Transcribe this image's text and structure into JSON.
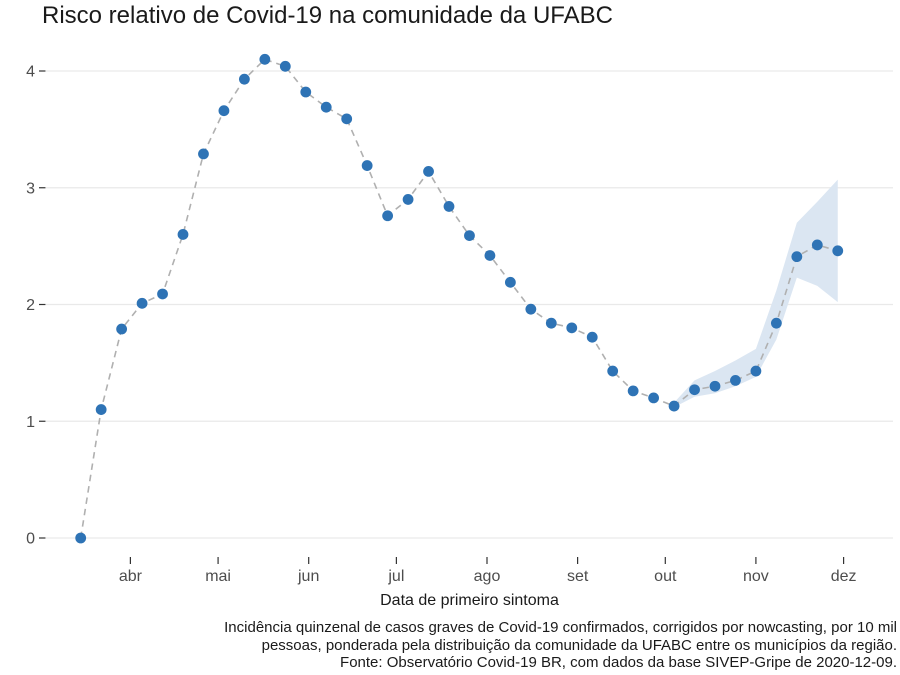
{
  "chart_data": {
    "type": "line",
    "title": "Risco relativo de Covid-19 na comunidade da UFABC",
    "xlabel": "Data de primeiro sintoma",
    "ylabel": "",
    "caption_lines": [
      "Incidência quinzenal de casos graves de Covid-19 confirmados, corrigidos por nowcasting, por 10 mil",
      "pessoas, ponderada pela distribuição da comunidade da UFABC entre os municípios da região.",
      "Fonte: Observatório Covid-19 BR, com dados da base SIVEP-Gripe de 2020-12-09."
    ],
    "grid": "horizontal-major-only",
    "legend": "none",
    "ylim": [
      0,
      4.3
    ],
    "y_ticks": [
      0,
      1,
      2,
      3,
      4
    ],
    "x_ticks": [
      {
        "label": "abr",
        "date": "2020-04-01"
      },
      {
        "label": "mai",
        "date": "2020-05-01"
      },
      {
        "label": "jun",
        "date": "2020-06-01"
      },
      {
        "label": "jul",
        "date": "2020-07-01"
      },
      {
        "label": "ago",
        "date": "2020-08-01"
      },
      {
        "label": "set",
        "date": "2020-09-01"
      },
      {
        "label": "out",
        "date": "2020-10-01"
      },
      {
        "label": "nov",
        "date": "2020-11-01"
      },
      {
        "label": "dez",
        "date": "2020-12-01"
      }
    ],
    "series": [
      {
        "name": "risco-relativo",
        "style": "points-with-dashed-line",
        "points": [
          {
            "date": "2020-03-15",
            "value": 0.0
          },
          {
            "date": "2020-03-22",
            "value": 1.1
          },
          {
            "date": "2020-03-29",
            "value": 1.79
          },
          {
            "date": "2020-04-05",
            "value": 2.01
          },
          {
            "date": "2020-04-12",
            "value": 2.09
          },
          {
            "date": "2020-04-19",
            "value": 2.6
          },
          {
            "date": "2020-04-26",
            "value": 3.29
          },
          {
            "date": "2020-05-03",
            "value": 3.66
          },
          {
            "date": "2020-05-10",
            "value": 3.93
          },
          {
            "date": "2020-05-17",
            "value": 4.1
          },
          {
            "date": "2020-05-24",
            "value": 4.04
          },
          {
            "date": "2020-05-31",
            "value": 3.82
          },
          {
            "date": "2020-06-07",
            "value": 3.69
          },
          {
            "date": "2020-06-14",
            "value": 3.59
          },
          {
            "date": "2020-06-21",
            "value": 3.19
          },
          {
            "date": "2020-06-28",
            "value": 2.76
          },
          {
            "date": "2020-07-05",
            "value": 2.9
          },
          {
            "date": "2020-07-12",
            "value": 3.14
          },
          {
            "date": "2020-07-19",
            "value": 2.84
          },
          {
            "date": "2020-07-26",
            "value": 2.59
          },
          {
            "date": "2020-08-02",
            "value": 2.42
          },
          {
            "date": "2020-08-09",
            "value": 2.19
          },
          {
            "date": "2020-08-16",
            "value": 1.96
          },
          {
            "date": "2020-08-23",
            "value": 1.84
          },
          {
            "date": "2020-08-30",
            "value": 1.8
          },
          {
            "date": "2020-09-06",
            "value": 1.72
          },
          {
            "date": "2020-09-13",
            "value": 1.43
          },
          {
            "date": "2020-09-20",
            "value": 1.26
          },
          {
            "date": "2020-09-27",
            "value": 1.2
          },
          {
            "date": "2020-10-04",
            "value": 1.13
          },
          {
            "date": "2020-10-11",
            "value": 1.27
          },
          {
            "date": "2020-10-18",
            "value": 1.3
          },
          {
            "date": "2020-10-25",
            "value": 1.35
          },
          {
            "date": "2020-11-01",
            "value": 1.43
          },
          {
            "date": "2020-11-08",
            "value": 1.84
          },
          {
            "date": "2020-11-15",
            "value": 2.41
          },
          {
            "date": "2020-11-22",
            "value": 2.51
          },
          {
            "date": "2020-11-29",
            "value": 2.46
          }
        ]
      }
    ],
    "ribbon": {
      "name": "nowcasting-confidence-band",
      "points": [
        {
          "date": "2020-10-04",
          "lower": 1.12,
          "upper": 1.16
        },
        {
          "date": "2020-10-11",
          "lower": 1.21,
          "upper": 1.35
        },
        {
          "date": "2020-10-18",
          "lower": 1.24,
          "upper": 1.43
        },
        {
          "date": "2020-10-25",
          "lower": 1.3,
          "upper": 1.52
        },
        {
          "date": "2020-11-01",
          "lower": 1.38,
          "upper": 1.62
        },
        {
          "date": "2020-11-08",
          "lower": 1.7,
          "upper": 2.12
        },
        {
          "date": "2020-11-15",
          "lower": 2.23,
          "upper": 2.7
        },
        {
          "date": "2020-11-22",
          "lower": 2.16,
          "upper": 2.88
        },
        {
          "date": "2020-11-29",
          "lower": 2.02,
          "upper": 3.07
        }
      ]
    },
    "colors": {
      "point": "#2e73b5",
      "dashed_line": "#b0b0b0",
      "ribbon": "#dbe6f2",
      "gridline": "#e9e9e9",
      "axis_text": "#4d4d4d",
      "tick_mark": "#333333",
      "title_text": "#1a1a1a"
    }
  }
}
